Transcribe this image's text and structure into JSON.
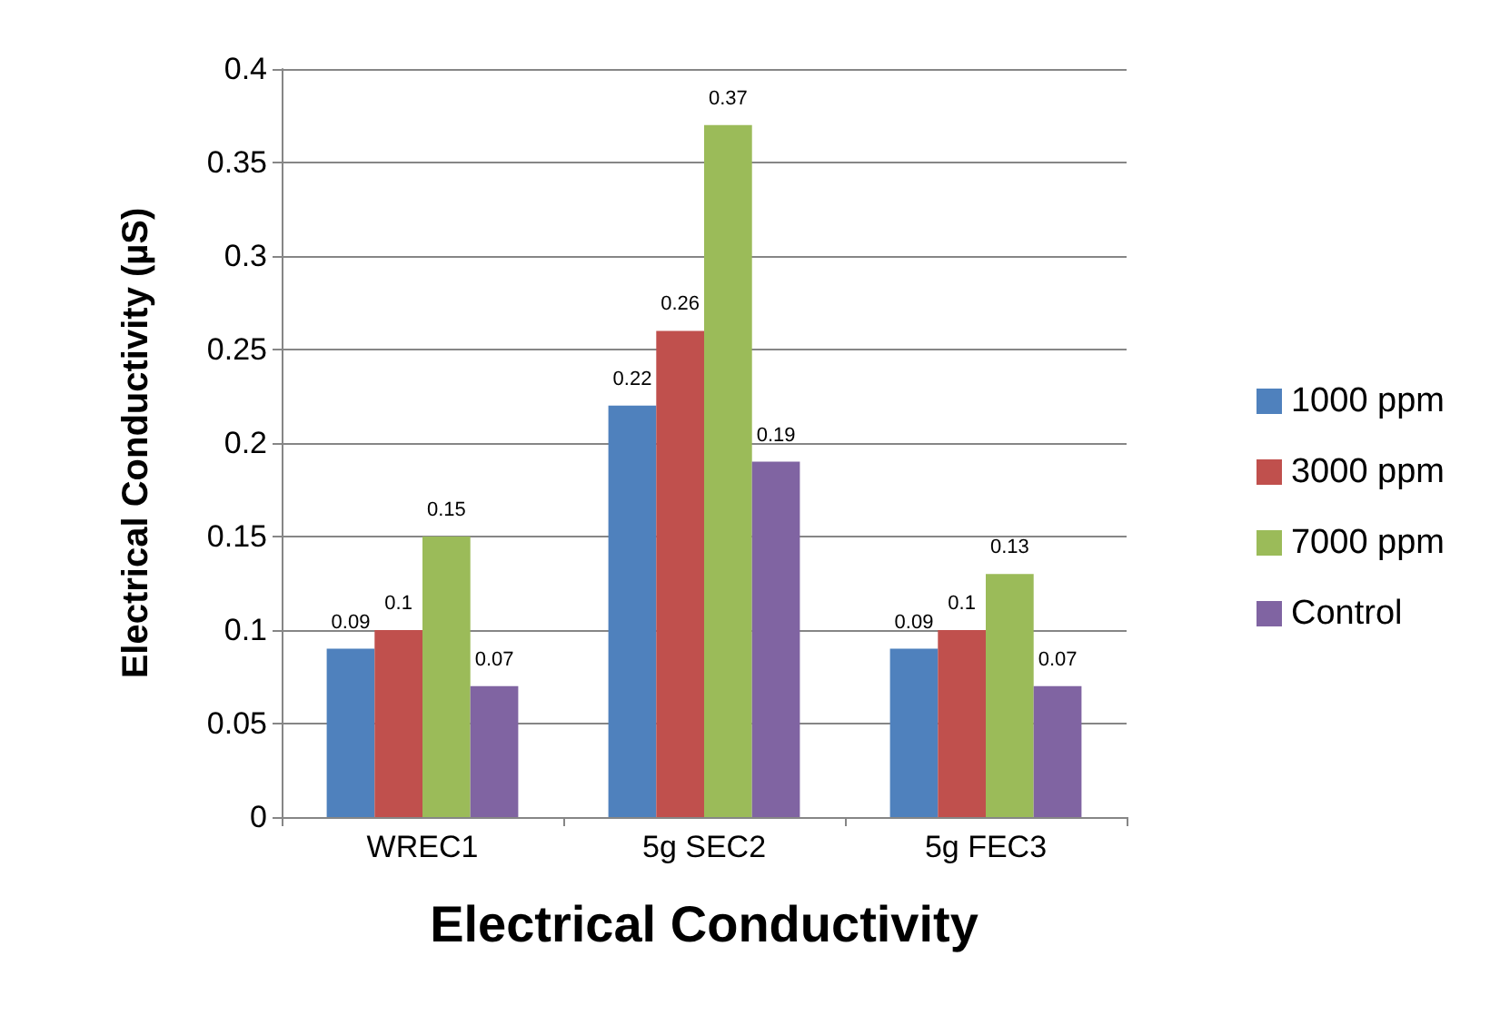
{
  "chart_data": {
    "type": "bar",
    "xlabel": "Electrical Conductivity",
    "ylabel": "Electrical Conductivity (µS)",
    "categories": [
      "WREC1",
      "5g SEC2",
      "5g FEC3"
    ],
    "series": [
      {
        "name": "1000 ppm",
        "color": "#4f81bd",
        "values": [
          0.09,
          0.22,
          0.09
        ]
      },
      {
        "name": "3000 ppm",
        "color": "#c0504d",
        "values": [
          0.1,
          0.26,
          0.1
        ]
      },
      {
        "name": "7000 ppm",
        "color": "#9bbb59",
        "values": [
          0.15,
          0.37,
          0.13
        ]
      },
      {
        "name": "Control",
        "color": "#8064a2",
        "values": [
          0.07,
          0.19,
          0.07
        ]
      }
    ],
    "ylim": [
      0,
      0.4
    ],
    "yticks": [
      0,
      0.05,
      0.1,
      0.15,
      0.2,
      0.25,
      0.3,
      0.35,
      0.4
    ],
    "grid": "y",
    "legend": "right",
    "data_labels": true
  }
}
